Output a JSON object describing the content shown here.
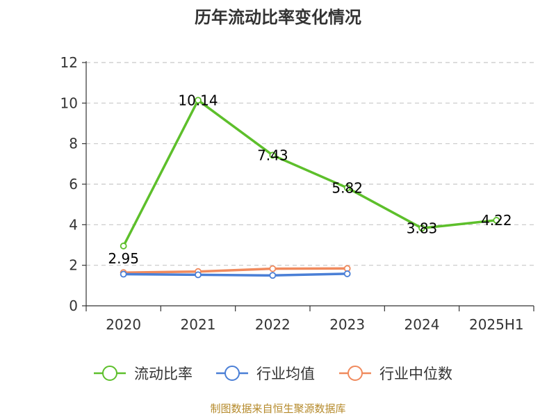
{
  "chart_data": {
    "type": "line",
    "title": "历年流动比率变化情况",
    "categories": [
      "2020",
      "2021",
      "2022",
      "2023",
      "2024",
      "2025H1"
    ],
    "y_ticks": [
      "0",
      "2",
      "4",
      "6",
      "8",
      "10",
      "12"
    ],
    "ylim": [
      0,
      12
    ],
    "grid": "horizontal dashed",
    "legend_position": "bottom",
    "series": [
      {
        "name": "流动比率",
        "color": "#5dbf2b",
        "values": [
          2.95,
          10.14,
          7.43,
          5.82,
          3.83,
          4.22
        ],
        "labels": [
          "2.95",
          "10.14",
          "7.43",
          "5.82",
          "3.83",
          "4.22"
        ],
        "show_labels": true
      },
      {
        "name": "行业均值",
        "color": "#4a7fd6",
        "values": [
          1.56,
          1.53,
          1.5,
          1.58,
          null,
          null
        ],
        "show_labels": false
      },
      {
        "name": "行业中位数",
        "color": "#f08a5d",
        "values": [
          1.64,
          1.69,
          1.83,
          1.84,
          null,
          null
        ],
        "show_labels": false
      }
    ]
  },
  "footer": {
    "source": "制图数据来自恒生聚源数据库"
  }
}
